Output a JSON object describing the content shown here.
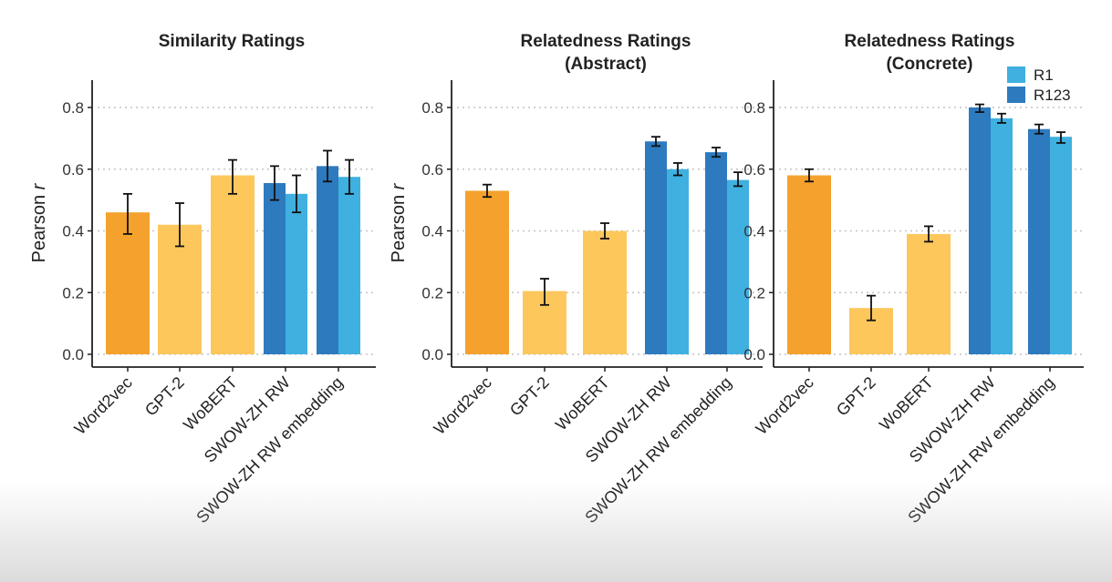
{
  "chart_data": [
    {
      "type": "bar",
      "title": "Similarity Ratings",
      "subtitle": "",
      "ylabel": "Pearson r",
      "ylim": [
        0,
        0.9
      ],
      "yticks": [
        "0.0",
        "0.2",
        "0.4",
        "0.6",
        "0.8"
      ],
      "grid": "horizontal dotted",
      "categories": [
        "Word2vec",
        "GPT-2",
        "WoBERT",
        "SWOW-ZH RW",
        "SWOW-ZH RW embedding"
      ],
      "bars": [
        {
          "category": "Word2vec",
          "value": 0.46,
          "err": [
            0.39,
            0.52
          ],
          "color": "#F4A22D"
        },
        {
          "category": "GPT-2",
          "value": 0.42,
          "err": [
            0.35,
            0.49
          ],
          "color": "#FDC75C"
        },
        {
          "category": "WoBERT",
          "value": 0.58,
          "err": [
            0.52,
            0.63
          ],
          "color": "#FDC75C"
        },
        {
          "category": "SWOW-ZH RW",
          "series": "R123",
          "value": 0.555,
          "err": [
            0.5,
            0.61
          ],
          "color": "#2D7ABF"
        },
        {
          "category": "SWOW-ZH RW",
          "series": "R1",
          "value": 0.52,
          "err": [
            0.46,
            0.58
          ],
          "color": "#3FB0E0"
        },
        {
          "category": "SWOW-ZH RW embedding",
          "series": "R123",
          "value": 0.61,
          "err": [
            0.56,
            0.66
          ],
          "color": "#2D7ABF"
        },
        {
          "category": "SWOW-ZH RW embedding",
          "series": "R1",
          "value": 0.575,
          "err": [
            0.52,
            0.63
          ],
          "color": "#3FB0E0"
        }
      ]
    },
    {
      "type": "bar",
      "title": "Relatedness Ratings",
      "subtitle": "(Abstract)",
      "ylabel": "Pearson r",
      "ylim": [
        0,
        0.9
      ],
      "yticks": [
        "0.0",
        "0.2",
        "0.4",
        "0.6",
        "0.8"
      ],
      "grid": "horizontal dotted",
      "categories": [
        "Word2vec",
        "GPT-2",
        "WoBERT",
        "SWOW-ZH RW",
        "SWOW-ZH RW embedding"
      ],
      "bars": [
        {
          "category": "Word2vec",
          "value": 0.53,
          "err": [
            0.51,
            0.55
          ],
          "color": "#F4A22D"
        },
        {
          "category": "GPT-2",
          "value": 0.205,
          "err": [
            0.16,
            0.245
          ],
          "color": "#FDC75C"
        },
        {
          "category": "WoBERT",
          "value": 0.4,
          "err": [
            0.375,
            0.425
          ],
          "color": "#FDC75C"
        },
        {
          "category": "SWOW-ZH RW",
          "series": "R123",
          "value": 0.69,
          "err": [
            0.675,
            0.705
          ],
          "color": "#2D7ABF"
        },
        {
          "category": "SWOW-ZH RW",
          "series": "R1",
          "value": 0.6,
          "err": [
            0.58,
            0.62
          ],
          "color": "#3FB0E0"
        },
        {
          "category": "SWOW-ZH RW embedding",
          "series": "R123",
          "value": 0.655,
          "err": [
            0.64,
            0.67
          ],
          "color": "#2D7ABF"
        },
        {
          "category": "SWOW-ZH RW embedding",
          "series": "R1",
          "value": 0.565,
          "err": [
            0.545,
            0.59
          ],
          "color": "#3FB0E0"
        }
      ]
    },
    {
      "type": "bar",
      "title": "Relatedness Ratings",
      "subtitle": "(Concrete)",
      "ylabel": "",
      "ylim": [
        0,
        0.9
      ],
      "yticks": [
        "0.0",
        "0.2",
        "0.4",
        "0.6",
        "0.8"
      ],
      "grid": "horizontal dotted",
      "legend": {
        "position": "top-right",
        "items": [
          {
            "name": "R1",
            "color": "#3FB0E0"
          },
          {
            "name": "R123",
            "color": "#2D7ABF"
          }
        ]
      },
      "categories": [
        "Word2vec",
        "GPT-2",
        "WoBERT",
        "SWOW-ZH RW",
        "SWOW-ZH RW embedding"
      ],
      "bars": [
        {
          "category": "Word2vec",
          "value": 0.58,
          "err": [
            0.56,
            0.6
          ],
          "color": "#F4A22D"
        },
        {
          "category": "GPT-2",
          "value": 0.15,
          "err": [
            0.11,
            0.19
          ],
          "color": "#FDC75C"
        },
        {
          "category": "WoBERT",
          "value": 0.39,
          "err": [
            0.365,
            0.415
          ],
          "color": "#FDC75C"
        },
        {
          "category": "SWOW-ZH RW",
          "series": "R123",
          "value": 0.8,
          "err": [
            0.785,
            0.81
          ],
          "color": "#2D7ABF"
        },
        {
          "category": "SWOW-ZH RW",
          "series": "R1",
          "value": 0.765,
          "err": [
            0.75,
            0.78
          ],
          "color": "#3FB0E0"
        },
        {
          "category": "SWOW-ZH RW embedding",
          "series": "R123",
          "value": 0.73,
          "err": [
            0.715,
            0.745
          ],
          "color": "#2D7ABF"
        },
        {
          "category": "SWOW-ZH RW embedding",
          "series": "R1",
          "value": 0.705,
          "err": [
            0.685,
            0.72
          ],
          "color": "#3FB0E0"
        }
      ]
    }
  ]
}
